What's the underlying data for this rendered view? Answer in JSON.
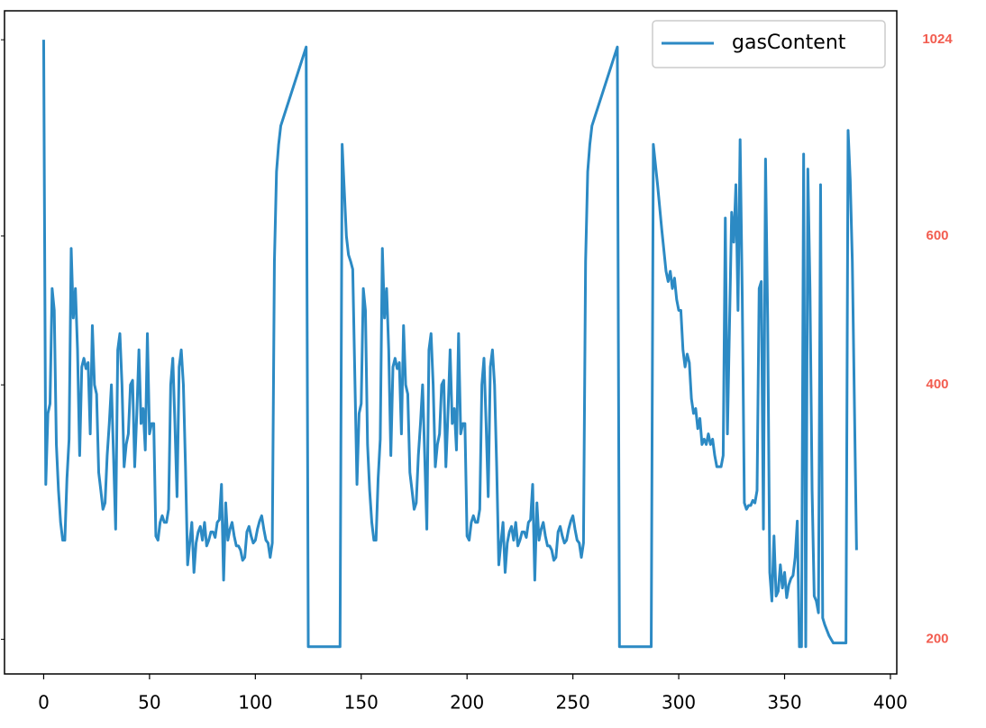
{
  "chart_data": {
    "type": "line",
    "log_y": true,
    "xlim": [
      -18.5,
      403
    ],
    "ylim": [
      182,
      1108
    ],
    "xticks": [
      0,
      50,
      100,
      150,
      200,
      250,
      300,
      350,
      400
    ],
    "yticks": [
      200,
      400,
      600,
      1024
    ],
    "ytick_color": "#f25c4f",
    "legend": "upper right",
    "series": [
      {
        "name": "gasContent",
        "color": "#2c8ac4",
        "x": [
          0,
          1,
          2,
          3,
          4,
          5,
          6,
          7,
          8,
          9,
          10,
          11,
          12,
          13,
          14,
          15,
          16,
          17,
          18,
          19,
          20,
          21,
          22,
          23,
          24,
          25,
          26,
          27,
          28,
          29,
          30,
          31,
          32,
          33,
          34,
          35,
          36,
          37,
          38,
          39,
          40,
          41,
          42,
          43,
          44,
          45,
          46,
          47,
          48,
          49,
          50,
          51,
          52,
          53,
          54,
          55,
          56,
          57,
          58,
          59,
          60,
          61,
          62,
          63,
          64,
          65,
          66,
          67,
          68,
          69,
          70,
          71,
          72,
          73,
          74,
          75,
          76,
          77,
          78,
          79,
          80,
          81,
          82,
          83,
          84,
          85,
          86,
          87,
          88,
          89,
          90,
          91,
          92,
          93,
          94,
          95,
          96,
          97,
          98,
          99,
          100,
          101,
          102,
          103,
          104,
          105,
          106,
          107,
          108,
          109,
          110,
          111,
          112,
          124,
          125,
          140,
          141,
          142,
          143,
          144,
          145,
          146,
          148,
          149,
          150,
          151,
          152,
          153,
          154,
          155,
          156,
          157,
          158,
          159,
          160,
          161,
          162,
          163,
          164,
          165,
          166,
          167,
          168,
          169,
          170,
          171,
          172,
          173,
          174,
          175,
          176,
          177,
          178,
          179,
          180,
          181,
          182,
          183,
          184,
          185,
          186,
          187,
          188,
          189,
          190,
          191,
          192,
          193,
          194,
          195,
          196,
          197,
          198,
          199,
          200,
          201,
          202,
          203,
          204,
          205,
          206,
          207,
          208,
          209,
          210,
          211,
          212,
          213,
          214,
          215,
          216,
          217,
          218,
          219,
          220,
          221,
          222,
          223,
          224,
          225,
          226,
          227,
          228,
          229,
          230,
          231,
          232,
          233,
          234,
          235,
          236,
          237,
          238,
          239,
          240,
          241,
          242,
          243,
          244,
          245,
          246,
          247,
          248,
          249,
          250,
          251,
          252,
          253,
          254,
          255,
          256,
          257,
          258,
          259,
          271,
          272,
          287,
          288,
          290,
          292,
          294,
          295,
          296,
          297,
          298,
          299,
          300,
          301,
          302,
          303,
          304,
          305,
          306,
          307,
          308,
          309,
          310,
          311,
          312,
          313,
          314,
          315,
          316,
          317,
          318,
          319,
          320,
          321,
          322,
          323,
          325,
          326,
          327,
          328,
          329,
          330,
          331,
          332,
          333,
          334,
          335,
          336,
          337,
          338,
          339,
          340,
          341,
          342,
          343,
          344,
          345,
          346,
          347,
          348,
          349,
          350,
          351,
          352,
          353,
          354,
          355,
          356,
          357,
          358,
          359,
          360,
          361,
          362,
          363,
          364,
          365,
          366,
          367,
          368,
          369,
          370,
          371,
          372,
          373,
          379,
          380,
          381,
          382,
          384
        ],
        "values": [
          1024,
          305,
          370,
          380,
          520,
          490,
          340,
          300,
          275,
          262,
          262,
          310,
          345,
          580,
          480,
          520,
          440,
          330,
          420,
          430,
          418,
          425,
          350,
          470,
          400,
          390,
          315,
          300,
          285,
          290,
          330,
          360,
          400,
          330,
          270,
          440,
          460,
          400,
          320,
          340,
          350,
          400,
          405,
          320,
          370,
          440,
          360,
          375,
          335,
          460,
          350,
          360,
          360,
          265,
          262,
          275,
          280,
          275,
          275,
          285,
          400,
          430,
          360,
          295,
          420,
          440,
          400,
          320,
          245,
          260,
          275,
          240,
          260,
          268,
          272,
          262,
          275,
          258,
          262,
          268,
          268,
          264,
          275,
          277,
          305,
          235,
          290,
          262,
          270,
          275,
          265,
          258,
          258,
          255,
          248,
          250,
          268,
          272,
          265,
          260,
          262,
          270,
          276,
          280,
          270,
          262,
          260,
          250,
          260,
          560,
          715,
          770,
          810,
          1004,
          196,
          196,
          770,
          680,
          600,
          570,
          560,
          548,
          305,
          370,
          380,
          520,
          490,
          340,
          300,
          275,
          262,
          262,
          310,
          345,
          580,
          480,
          520,
          440,
          330,
          420,
          430,
          418,
          425,
          350,
          470,
          400,
          390,
          315,
          300,
          285,
          290,
          330,
          360,
          400,
          330,
          270,
          440,
          460,
          400,
          320,
          340,
          350,
          400,
          405,
          320,
          370,
          440,
          360,
          375,
          335,
          460,
          350,
          360,
          360,
          265,
          262,
          275,
          280,
          275,
          275,
          285,
          400,
          430,
          360,
          295,
          420,
          440,
          400,
          320,
          245,
          260,
          275,
          240,
          260,
          268,
          272,
          262,
          275,
          258,
          262,
          268,
          268,
          264,
          275,
          277,
          305,
          235,
          290,
          262,
          270,
          275,
          265,
          258,
          258,
          255,
          248,
          250,
          268,
          272,
          265,
          260,
          262,
          270,
          276,
          280,
          270,
          262,
          260,
          250,
          260,
          560,
          715,
          770,
          810,
          1004,
          196,
          196,
          770,
          690,
          610,
          545,
          530,
          545,
          520,
          535,
          505,
          490,
          490,
          440,
          420,
          435,
          425,
          385,
          370,
          375,
          355,
          365,
          340,
          345,
          340,
          350,
          340,
          345,
          330,
          320,
          320,
          320,
          330,
          630,
          350,
          640,
          590,
          690,
          490,
          780,
          510,
          290,
          285,
          288,
          288,
          292,
          290,
          300,
          520,
          530,
          270,
          740,
          480,
          240,
          222,
          265,
          225,
          228,
          245,
          230,
          240,
          224,
          232,
          236,
          238,
          250,
          276,
          196,
          196,
          750,
          196,
          720,
          520,
          300,
          225,
          222,
          215,
          690,
          212,
          208,
          205,
          202,
          200,
          198,
          198,
          800,
          700,
          560,
          255
        ]
      }
    ]
  }
}
